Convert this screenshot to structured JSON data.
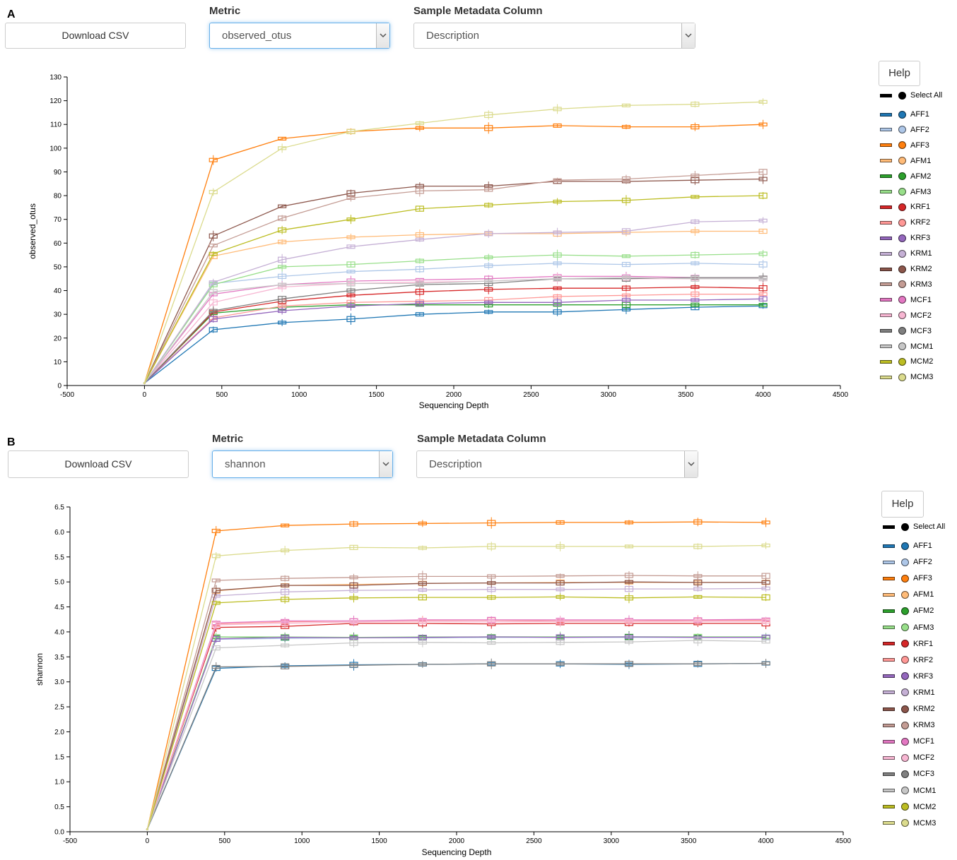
{
  "colors": {
    "AFF1": "#1f77b4",
    "AFF2": "#aec7e8",
    "AFF3": "#ff7f0e",
    "AFM1": "#ffbb78",
    "AFM2": "#2ca02c",
    "AFM3": "#98df8a",
    "KRF1": "#d62728",
    "KRF2": "#ff9896",
    "KRF3": "#9467bd",
    "KRM1": "#c5b0d5",
    "KRM2": "#8c564b",
    "KRM3": "#c49c94",
    "MCF1": "#e377c2",
    "MCF2": "#f7b6d2",
    "MCF3": "#7f7f7f",
    "MCM1": "#c7c7c7",
    "MCM2": "#bcbd22",
    "MCM3": "#dbdb8d"
  },
  "panels": [
    {
      "letter": "A",
      "download_label": "Download CSV",
      "metric_label": "Metric",
      "metric_value": "observed_otus",
      "metadata_label": "Sample Metadata Column",
      "metadata_value": "Description",
      "help_label": "Help",
      "select_all_label": "Select All",
      "legend": [
        "AFF1",
        "AFF2",
        "AFF3",
        "AFM1",
        "AFM2",
        "AFM3",
        "KRF1",
        "KRF2",
        "KRF3",
        "KRM1",
        "KRM2",
        "KRM3",
        "MCF1",
        "MCF2",
        "MCF3",
        "MCM1",
        "MCM2",
        "MCM3"
      ]
    },
    {
      "letter": "B",
      "download_label": "Download CSV",
      "metric_label": "Metric",
      "metric_value": "shannon",
      "metadata_label": "Sample Metadata Column",
      "metadata_value": "Description",
      "help_label": "Help",
      "select_all_label": "Select All",
      "legend": [
        "AFF1",
        "AFF2",
        "AFF3",
        "AFM1",
        "AFM2",
        "AFM3",
        "KRF1",
        "KRF2",
        "KRF3",
        "KRM1",
        "KRM2",
        "KRM3",
        "MCF1",
        "MCF2",
        "MCF3",
        "MCM1",
        "MCM2",
        "MCM3"
      ]
    }
  ],
  "chart_data": [
    {
      "type": "line",
      "xlabel": "Sequencing Depth",
      "ylabel": "observed_otus",
      "xlim": [
        -500,
        4500
      ],
      "ylim": [
        0,
        130
      ],
      "xticks": [
        -500,
        0,
        500,
        1000,
        1500,
        2000,
        2500,
        3000,
        3500,
        4000,
        4500
      ],
      "yticks": [
        0,
        10,
        20,
        30,
        40,
        50,
        60,
        70,
        80,
        90,
        100,
        110,
        120,
        130
      ],
      "grid": false,
      "legend_position": "right",
      "x": [
        0,
        445,
        890,
        1335,
        1780,
        2225,
        2670,
        3115,
        3560,
        4000
      ],
      "series": [
        {
          "name": "AFF1",
          "values": [
            1,
            23.5,
            26.5,
            28,
            30,
            31,
            31,
            32,
            33,
            33.5
          ]
        },
        {
          "name": "AFF2",
          "values": [
            1,
            43,
            46,
            48,
            49,
            50.5,
            51.5,
            51,
            51.5,
            51
          ]
        },
        {
          "name": "AFF3",
          "values": [
            1,
            95,
            104,
            107,
            108.5,
            108.5,
            109.5,
            109,
            109,
            110
          ]
        },
        {
          "name": "AFM1",
          "values": [
            1,
            54.5,
            60.5,
            62.5,
            63.5,
            64,
            64,
            64.5,
            65,
            65
          ]
        },
        {
          "name": "AFM2",
          "values": [
            1,
            30.5,
            33,
            34,
            34,
            34,
            34,
            34,
            34,
            34
          ]
        },
        {
          "name": "AFM3",
          "values": [
            1,
            42.5,
            50,
            51,
            52.5,
            54,
            55,
            54.5,
            55,
            55.5
          ]
        },
        {
          "name": "KRF1",
          "values": [
            1,
            31,
            35.5,
            38,
            39.5,
            40.5,
            41,
            41,
            41.5,
            41
          ]
        },
        {
          "name": "KRF2",
          "values": [
            1,
            28.5,
            33.5,
            35,
            35.5,
            36,
            37.5,
            38,
            38.5,
            38.5
          ]
        },
        {
          "name": "KRF3",
          "values": [
            1,
            28,
            31.5,
            33.5,
            34.5,
            35,
            35,
            36,
            36,
            36.5
          ]
        },
        {
          "name": "KRM1",
          "values": [
            1,
            43.5,
            53,
            58.5,
            61.5,
            64,
            64.5,
            65,
            69,
            69.5
          ]
        },
        {
          "name": "KRM2",
          "values": [
            1,
            63,
            75.5,
            81,
            84,
            84,
            86,
            86,
            86.5,
            87
          ]
        },
        {
          "name": "KRM3",
          "values": [
            1,
            59,
            70.5,
            79,
            82,
            82.5,
            86.5,
            87,
            88.5,
            90
          ]
        },
        {
          "name": "MCF1",
          "values": [
            1,
            38.5,
            42.5,
            44,
            44.5,
            45,
            46,
            46,
            45.5,
            45.5
          ]
        },
        {
          "name": "MCF2",
          "values": [
            1,
            35,
            41.5,
            43,
            43.5,
            44,
            45,
            45,
            45,
            45
          ]
        },
        {
          "name": "MCF3",
          "values": [
            1,
            31.5,
            36.5,
            40,
            42.5,
            43,
            45,
            45,
            45.5,
            45.5
          ]
        },
        {
          "name": "MCM1",
          "values": [
            1,
            39.5,
            42.5,
            43,
            43,
            44,
            45,
            45.5,
            45,
            45
          ]
        },
        {
          "name": "MCM2",
          "values": [
            1,
            55.5,
            65.5,
            70,
            74.5,
            76,
            77.5,
            78,
            79.5,
            80
          ]
        },
        {
          "name": "MCM3",
          "values": [
            1,
            81.5,
            100,
            107,
            110.5,
            114,
            116.5,
            118,
            118.5,
            119.5
          ]
        }
      ]
    },
    {
      "type": "line",
      "xlabel": "Sequencing Depth",
      "ylabel": "shannon",
      "xlim": [
        -500,
        4500
      ],
      "ylim": [
        0,
        6.5
      ],
      "xticks": [
        -500,
        0,
        500,
        1000,
        1500,
        2000,
        2500,
        3000,
        3500,
        4000,
        4500
      ],
      "yticks": [
        0.0,
        0.5,
        1.0,
        1.5,
        2.0,
        2.5,
        3.0,
        3.5,
        4.0,
        4.5,
        5.0,
        5.5,
        6.0,
        6.5
      ],
      "grid": false,
      "legend_position": "right",
      "x": [
        0,
        445,
        890,
        1335,
        1780,
        2225,
        2670,
        3115,
        3560,
        4000
      ],
      "series": [
        {
          "name": "AFF1",
          "values": [
            0.05,
            3.27,
            3.32,
            3.34,
            3.35,
            3.36,
            3.36,
            3.35,
            3.36,
            3.37
          ]
        },
        {
          "name": "AFF2",
          "values": [
            0.05,
            3.85,
            3.87,
            3.88,
            3.88,
            3.89,
            3.89,
            3.89,
            3.89,
            3.89
          ]
        },
        {
          "name": "AFF3",
          "values": [
            0.05,
            6.02,
            6.13,
            6.16,
            6.17,
            6.18,
            6.19,
            6.19,
            6.2,
            6.19
          ]
        },
        {
          "name": "AFM1",
          "values": [
            0.05,
            4.82,
            4.93,
            4.95,
            4.97,
            4.98,
            4.99,
            4.99,
            4.99,
            4.99
          ]
        },
        {
          "name": "AFM2",
          "values": [
            0.05,
            3.9,
            3.89,
            3.89,
            3.89,
            3.9,
            3.9,
            3.9,
            3.9,
            3.9
          ]
        },
        {
          "name": "AFM3",
          "values": [
            0.05,
            3.9,
            3.9,
            3.89,
            3.9,
            3.9,
            3.9,
            3.9,
            3.9,
            3.9
          ]
        },
        {
          "name": "KRF1",
          "values": [
            0.05,
            4.09,
            4.11,
            4.17,
            4.17,
            4.16,
            4.17,
            4.17,
            4.17,
            4.17
          ]
        },
        {
          "name": "KRF2",
          "values": [
            0.05,
            4.16,
            4.2,
            4.22,
            4.23,
            4.23,
            4.22,
            4.22,
            4.23,
            4.23
          ]
        },
        {
          "name": "KRF3",
          "values": [
            0.05,
            3.86,
            3.89,
            3.88,
            3.89,
            3.9,
            3.89,
            3.9,
            3.89,
            3.89
          ]
        },
        {
          "name": "KRM1",
          "values": [
            0.05,
            4.72,
            4.8,
            4.83,
            4.84,
            4.85,
            4.85,
            4.86,
            4.86,
            4.87
          ]
        },
        {
          "name": "KRM2",
          "values": [
            0.05,
            4.83,
            4.93,
            4.93,
            4.97,
            4.98,
            4.98,
            5.0,
            4.99,
            4.99
          ]
        },
        {
          "name": "KRM3",
          "values": [
            0.05,
            5.03,
            5.07,
            5.09,
            5.11,
            5.11,
            5.12,
            5.13,
            5.12,
            5.12
          ]
        },
        {
          "name": "MCF1",
          "values": [
            0.05,
            4.18,
            4.22,
            4.22,
            4.24,
            4.24,
            4.24,
            4.24,
            4.24,
            4.25
          ]
        },
        {
          "name": "MCF2",
          "values": [
            0.05,
            4.14,
            4.17,
            4.2,
            4.21,
            4.2,
            4.21,
            4.21,
            4.21,
            4.21
          ]
        },
        {
          "name": "MCF3",
          "values": [
            0.05,
            3.3,
            3.31,
            3.33,
            3.35,
            3.36,
            3.36,
            3.36,
            3.36,
            3.37
          ]
        },
        {
          "name": "MCM1",
          "values": [
            0.05,
            3.68,
            3.73,
            3.78,
            3.79,
            3.78,
            3.79,
            3.8,
            3.83,
            3.81
          ]
        },
        {
          "name": "MCM2",
          "values": [
            0.05,
            4.58,
            4.65,
            4.68,
            4.69,
            4.69,
            4.7,
            4.68,
            4.7,
            4.69
          ]
        },
        {
          "name": "MCM3",
          "values": [
            0.05,
            5.52,
            5.63,
            5.69,
            5.68,
            5.71,
            5.71,
            5.71,
            5.71,
            5.73
          ]
        }
      ]
    }
  ]
}
